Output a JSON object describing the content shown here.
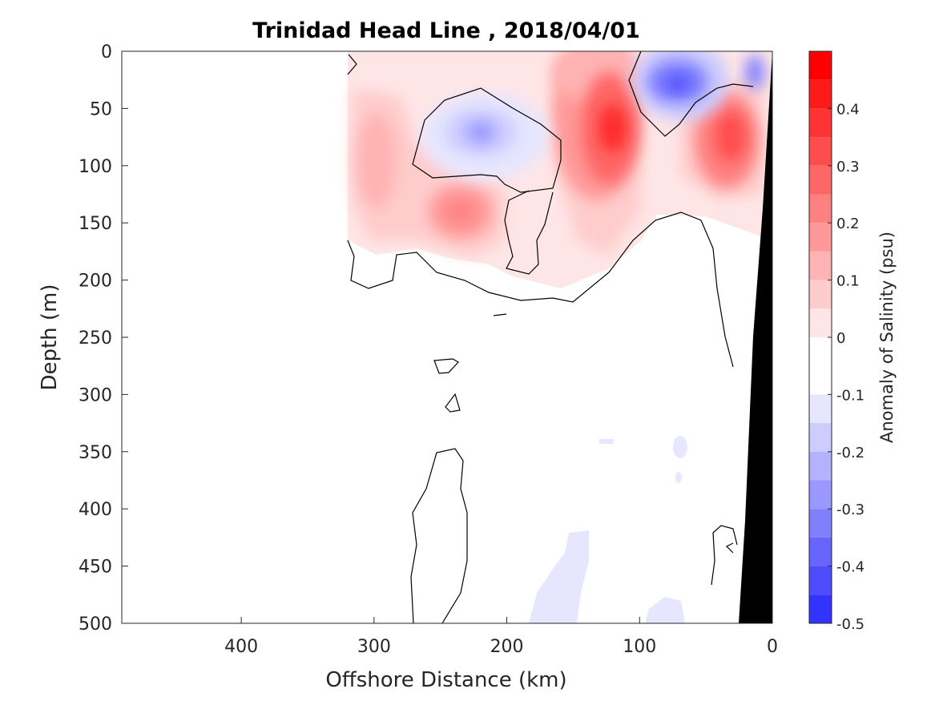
{
  "chart_data": {
    "type": "contour",
    "title": "Trinidad Head Line , 2018/04/01",
    "xlabel": "Offshore Distance (km)",
    "ylabel": "Depth (m)",
    "colorbar_label": "Anomaly of Salinity (psu)",
    "x_axis": {
      "reversed": true,
      "lim": [
        490,
        0
      ],
      "ticks": [
        400,
        300,
        200,
        100,
        0
      ],
      "tick_labels": [
        "400",
        "300",
        "200",
        "100",
        "0"
      ]
    },
    "y_axis": {
      "reversed": true,
      "lim": [
        0,
        500
      ],
      "ticks": [
        0,
        50,
        100,
        150,
        200,
        250,
        300,
        350,
        400,
        450,
        500
      ],
      "tick_labels": [
        "0",
        "50",
        "100",
        "150",
        "200",
        "250",
        "300",
        "350",
        "400",
        "450",
        "500"
      ]
    },
    "colorbar": {
      "range": [
        -0.5,
        0.5
      ],
      "step": 0.05,
      "ticks": [
        0.4,
        0.3,
        0.2,
        0.1,
        0,
        -0.1,
        -0.2,
        -0.3,
        -0.4,
        -0.5
      ],
      "tick_labels": [
        "0.4",
        "0.3",
        "0.2",
        "0.1",
        "0",
        "-0.1",
        "-0.2",
        "-0.3",
        "-0.4",
        "-0.5"
      ],
      "colors_high_to_low": [
        "#ff0000",
        "#ff1a1a",
        "#ff3333",
        "#ff4d4d",
        "#ff6666",
        "#ff8080",
        "#ff9999",
        "#ffb3b3",
        "#ffcccc",
        "#ffe6e6",
        "#ffffff",
        "#ffffff",
        "#e6e6ff",
        "#ccccff",
        "#b3b3ff",
        "#9999ff",
        "#8080ff",
        "#6666ff",
        "#4d4dff",
        "#3333ff",
        "#1a1aff"
      ]
    },
    "data_extent_km": [
      320,
      0
    ],
    "positive_anomalies": [
      {
        "x": 150,
        "y": 10,
        "value": 0.2
      },
      {
        "x": 122,
        "y": 70,
        "value": 0.45
      },
      {
        "x": 30,
        "y": 75,
        "value": 0.4
      },
      {
        "x": 237,
        "y": 140,
        "value": 0.25
      },
      {
        "x": 300,
        "y": 80,
        "value": 0.15
      }
    ],
    "negative_anomalies": [
      {
        "x": 68,
        "y": 30,
        "value": -0.3
      },
      {
        "x": 210,
        "y": 70,
        "value": -0.15
      },
      {
        "x": 5,
        "y": 20,
        "value": -0.2
      },
      {
        "x": 140,
        "y": 470,
        "value": -0.05
      },
      {
        "x": 70,
        "y": 350,
        "value": -0.05
      }
    ],
    "zero_contour": true,
    "bathymetry_fill": "#000000"
  }
}
